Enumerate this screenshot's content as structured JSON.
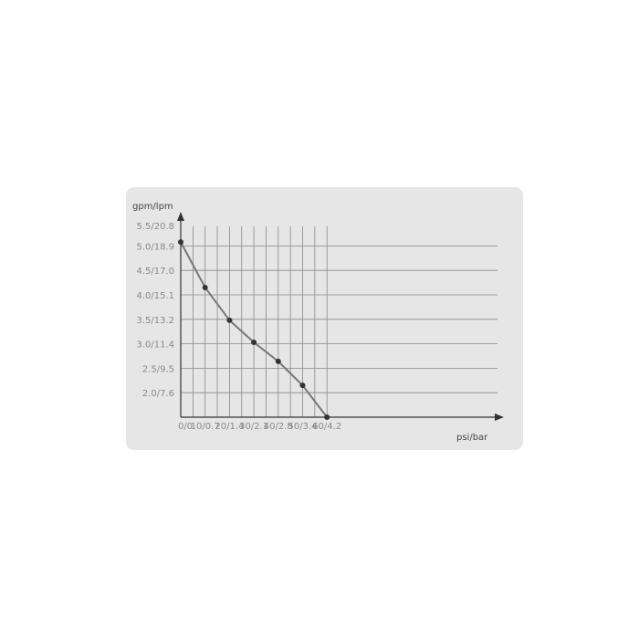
{
  "chart_data": {
    "type": "line",
    "xlabel": "psi/bar",
    "ylabel": "gpm/lpm",
    "x_tick_labels": [
      "0/0",
      "10/0.7",
      "20/1.4",
      "30/2.1",
      "40/2.8",
      "50/3.4",
      "60/4.2"
    ],
    "x_ticks": [
      0,
      10,
      20,
      30,
      40,
      50,
      60
    ],
    "y_tick_labels": [
      "5.5/20.8",
      "5.0/18.9",
      "4.5/17.0",
      "4.0/15.1",
      "3.5/13.2",
      "3.0/11.4",
      "2.5/9.5",
      "2.0/7.6"
    ],
    "y_ticks": [
      5.5,
      5.0,
      4.5,
      4.0,
      3.5,
      3.0,
      2.5,
      2.0
    ],
    "xlim": [
      0,
      65
    ],
    "ylim": [
      1.5,
      5.5
    ],
    "grid": true,
    "series": [
      {
        "x": [
          0,
          10,
          20,
          30,
          40,
          50,
          60
        ],
        "y": [
          5.08,
          4.15,
          3.48,
          3.03,
          2.64,
          2.15,
          1.5
        ]
      }
    ],
    "colors": {
      "background": "#e6e6e6",
      "line": "#777777",
      "marker": "#333333",
      "grid": "#888888"
    }
  }
}
